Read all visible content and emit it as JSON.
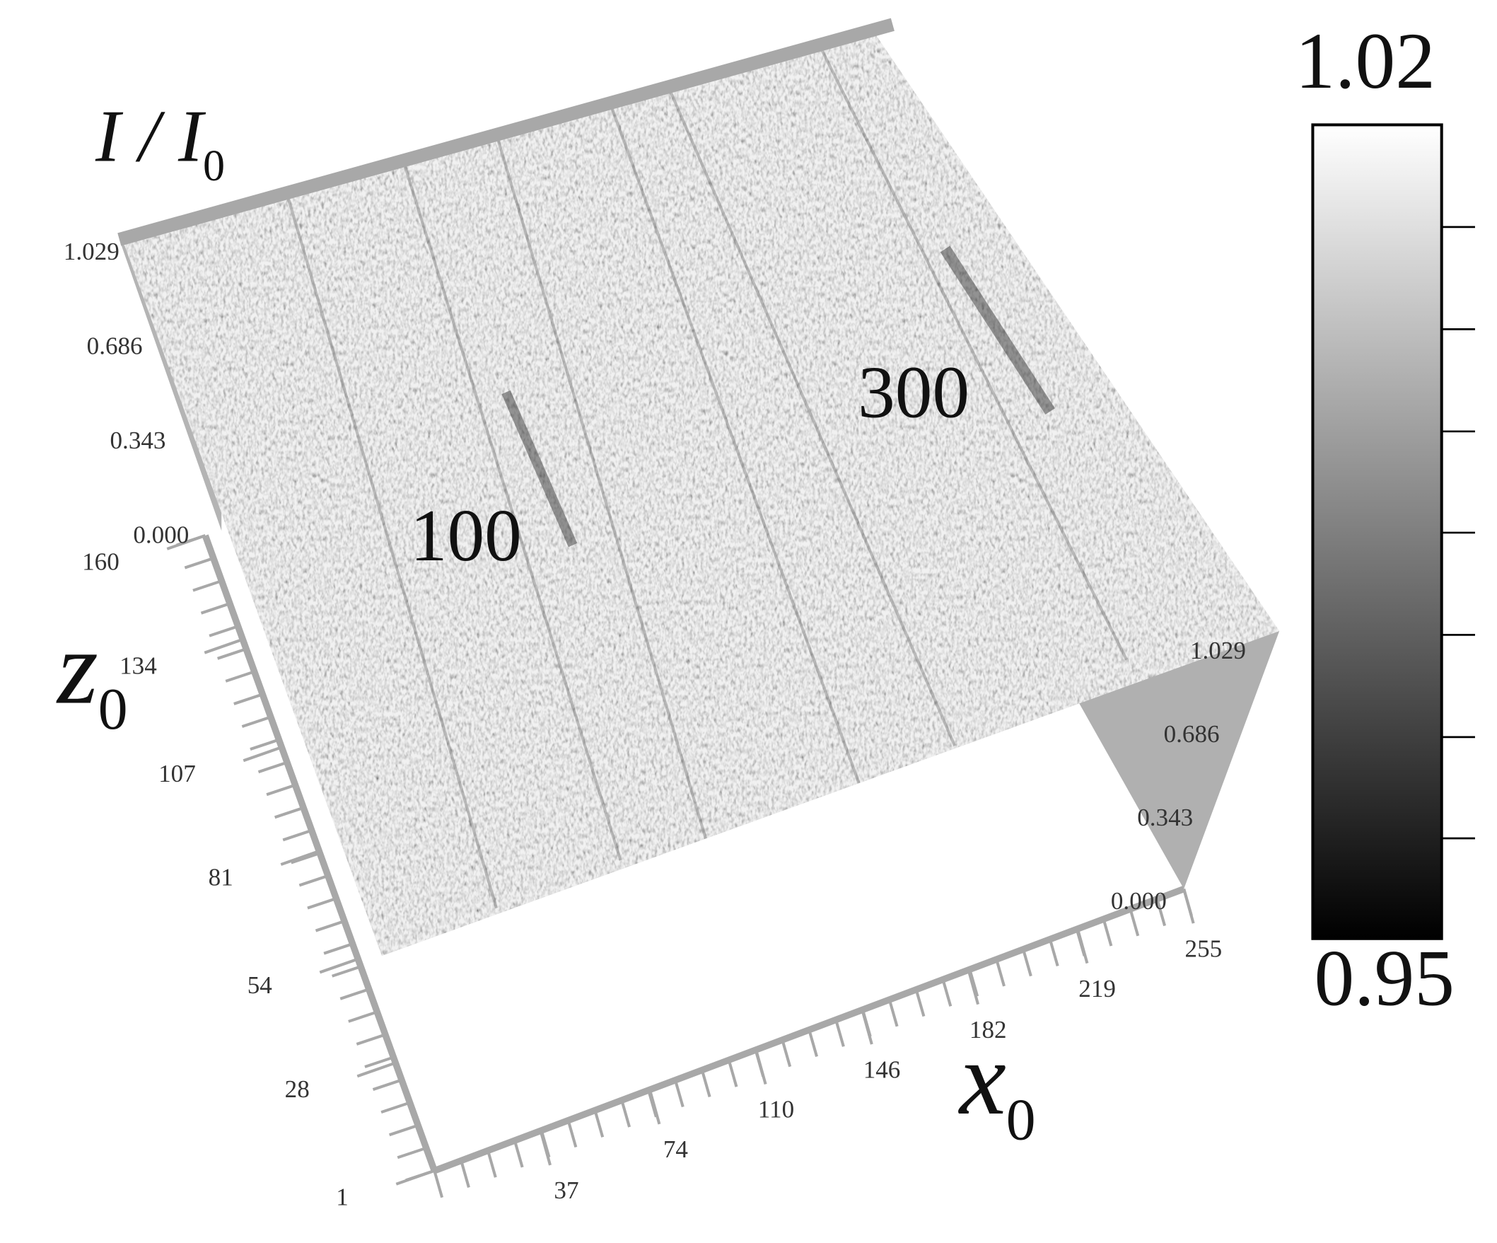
{
  "chart_data": {
    "type": "surface3d",
    "vlabel": {
      "text": "I / I",
      "subscript": "0"
    },
    "xlabel": {
      "text": "x",
      "subscript": "0"
    },
    "zlabel": {
      "text": "z",
      "subscript": "0"
    },
    "xlim": [
      1,
      255
    ],
    "xticks": [
      37,
      74,
      110,
      146,
      182,
      219,
      255
    ],
    "zlim": [
      1,
      160
    ],
    "zticks": [
      1,
      28,
      54,
      81,
      107,
      134,
      160
    ],
    "vlim": [
      0,
      1.029
    ],
    "vticks": [
      {
        "value": 0,
        "label": "0.000"
      },
      {
        "value": 0.343,
        "label": "0.343"
      },
      {
        "value": 0.686,
        "label": "0.686"
      },
      {
        "value": 1.029,
        "label": "1.029"
      }
    ],
    "annotations": [
      "100",
      "300"
    ],
    "colorbar": {
      "lim": [
        0.95,
        1.02
      ],
      "colors": [
        "#000000",
        "#ffffff"
      ]
    },
    "surface_color": "#c8c8c8",
    "axis_color": "#a8a8a8"
  }
}
